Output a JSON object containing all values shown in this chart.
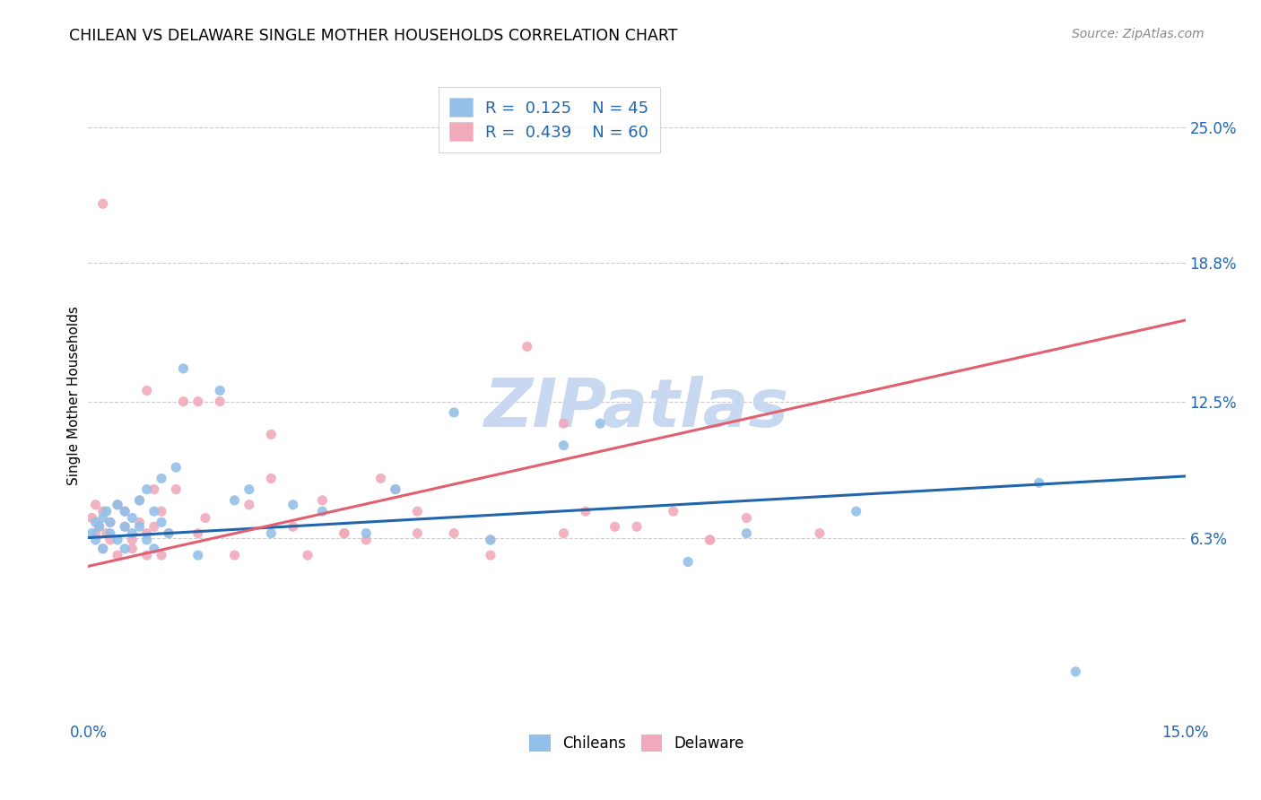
{
  "title": "CHILEAN VS DELAWARE SINGLE MOTHER HOUSEHOLDS CORRELATION CHART",
  "source": "Source: ZipAtlas.com",
  "ylabel": "Single Mother Households",
  "xmin": 0.0,
  "xmax": 0.15,
  "ymin": -0.02,
  "ymax": 0.275,
  "ytick_vals": [
    0.063,
    0.125,
    0.188,
    0.25
  ],
  "ytick_labels": [
    "6.3%",
    "12.5%",
    "18.8%",
    "25.0%"
  ],
  "chileans_R": 0.125,
  "chileans_N": 45,
  "delaware_R": 0.439,
  "delaware_N": 60,
  "blue_color": "#92C0E8",
  "pink_color": "#F0AABB",
  "blue_line_color": "#2166AC",
  "pink_line_color": "#E06070",
  "text_color": "#2166AC",
  "watermark_color": "#C8D8F0",
  "blue_line_x0": 0.0,
  "blue_line_y0": 0.063,
  "blue_line_x1": 0.15,
  "blue_line_y1": 0.091,
  "pink_line_x0": 0.0,
  "pink_line_y0": 0.05,
  "pink_line_x1": 0.15,
  "pink_line_y1": 0.162,
  "chileans_x": [
    0.0005,
    0.001,
    0.001,
    0.0015,
    0.002,
    0.002,
    0.0025,
    0.003,
    0.003,
    0.004,
    0.004,
    0.005,
    0.005,
    0.005,
    0.006,
    0.006,
    0.007,
    0.007,
    0.008,
    0.008,
    0.009,
    0.009,
    0.01,
    0.01,
    0.011,
    0.012,
    0.013,
    0.015,
    0.018,
    0.02,
    0.022,
    0.025,
    0.028,
    0.032,
    0.038,
    0.042,
    0.05,
    0.055,
    0.065,
    0.07,
    0.082,
    0.09,
    0.105,
    0.13,
    0.135
  ],
  "chileans_y": [
    0.065,
    0.07,
    0.062,
    0.068,
    0.072,
    0.058,
    0.075,
    0.065,
    0.07,
    0.062,
    0.078,
    0.068,
    0.075,
    0.058,
    0.072,
    0.065,
    0.068,
    0.08,
    0.062,
    0.085,
    0.075,
    0.058,
    0.09,
    0.07,
    0.065,
    0.095,
    0.14,
    0.055,
    0.13,
    0.08,
    0.085,
    0.065,
    0.078,
    0.075,
    0.065,
    0.085,
    0.12,
    0.062,
    0.105,
    0.115,
    0.052,
    0.065,
    0.075,
    0.088,
    0.002
  ],
  "delaware_x": [
    0.0005,
    0.001,
    0.001,
    0.0015,
    0.002,
    0.002,
    0.0025,
    0.003,
    0.003,
    0.004,
    0.004,
    0.005,
    0.005,
    0.006,
    0.006,
    0.007,
    0.007,
    0.008,
    0.008,
    0.009,
    0.009,
    0.01,
    0.01,
    0.011,
    0.012,
    0.013,
    0.015,
    0.016,
    0.018,
    0.02,
    0.022,
    0.025,
    0.028,
    0.03,
    0.032,
    0.035,
    0.038,
    0.04,
    0.042,
    0.045,
    0.05,
    0.055,
    0.06,
    0.065,
    0.068,
    0.072,
    0.08,
    0.085,
    0.09,
    0.1,
    0.002,
    0.008,
    0.015,
    0.025,
    0.035,
    0.045,
    0.055,
    0.065,
    0.075,
    0.085
  ],
  "delaware_y": [
    0.072,
    0.065,
    0.078,
    0.068,
    0.058,
    0.075,
    0.065,
    0.07,
    0.062,
    0.078,
    0.055,
    0.068,
    0.075,
    0.058,
    0.062,
    0.07,
    0.08,
    0.065,
    0.055,
    0.085,
    0.068,
    0.075,
    0.055,
    0.065,
    0.085,
    0.125,
    0.065,
    0.072,
    0.125,
    0.055,
    0.078,
    0.09,
    0.068,
    0.055,
    0.08,
    0.065,
    0.062,
    0.09,
    0.085,
    0.075,
    0.065,
    0.055,
    0.15,
    0.115,
    0.075,
    0.068,
    0.075,
    0.062,
    0.072,
    0.065,
    0.215,
    0.13,
    0.125,
    0.11,
    0.065,
    0.065,
    0.062,
    0.065,
    0.068,
    0.062
  ]
}
